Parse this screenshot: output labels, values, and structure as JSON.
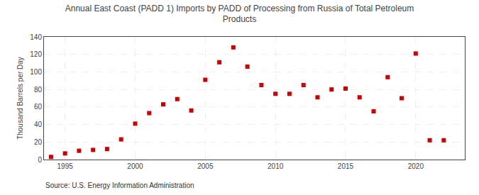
{
  "chart_data": {
    "type": "scatter",
    "title": "Annual East Coast (PADD 1) Imports by PADD of Processing from Russia of Total Petroleum\nProducts",
    "ylabel": "Thousand Barrels per Day",
    "annotations": [
      "Source: U.S. Energy Information Administration"
    ],
    "x": [
      1994,
      1995,
      1996,
      1997,
      1998,
      1999,
      2000,
      2001,
      2002,
      2003,
      2004,
      2005,
      2006,
      2007,
      2008,
      2009,
      2010,
      2011,
      2012,
      2013,
      2014,
      2015,
      2016,
      2017,
      2018,
      2019,
      2020,
      2021,
      2022
    ],
    "values": [
      3,
      7,
      10,
      11,
      12,
      23,
      41,
      53,
      63,
      69,
      56,
      91,
      111,
      128,
      106,
      85,
      75,
      75,
      85,
      71,
      80,
      81,
      71,
      55,
      94,
      70,
      121,
      22,
      22
    ],
    "color": "#cc0000",
    "marker": "square",
    "xlim": [
      1993.5,
      2023.5
    ],
    "ylim": [
      0,
      140
    ],
    "xticks": [
      1995,
      2000,
      2005,
      2010,
      2015,
      2020
    ],
    "yticks": [
      0,
      20,
      40,
      60,
      80,
      100,
      120,
      140
    ],
    "grid": true
  }
}
